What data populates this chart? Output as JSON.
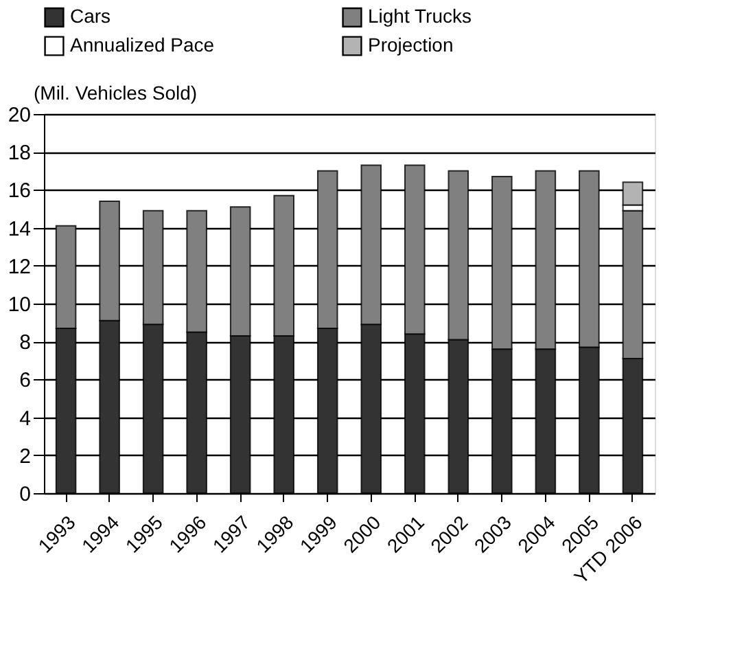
{
  "chart_data": {
    "type": "bar",
    "stacked": true,
    "ylabel": "(Mil. Vehicles Sold)",
    "categories": [
      "1993",
      "1994",
      "1995",
      "1996",
      "1997",
      "1998",
      "1999",
      "2000",
      "2001",
      "2002",
      "2003",
      "2004",
      "2005",
      "YTD 2006"
    ],
    "series": [
      {
        "name": "Cars",
        "color": "#333333",
        "values": [
          8.7,
          9.1,
          8.9,
          8.5,
          8.3,
          8.3,
          8.7,
          8.9,
          8.4,
          8.1,
          7.6,
          7.6,
          7.7,
          7.1
        ]
      },
      {
        "name": "Light Trucks",
        "color": "#808080",
        "values": [
          5.4,
          6.3,
          6.0,
          6.4,
          6.8,
          7.4,
          8.3,
          8.4,
          8.9,
          8.9,
          9.1,
          9.4,
          9.3,
          7.8
        ]
      },
      {
        "name": "Annualized Pace",
        "color": "#ffffff",
        "values": [
          null,
          null,
          null,
          null,
          null,
          null,
          null,
          null,
          null,
          null,
          null,
          null,
          null,
          0.3
        ]
      },
      {
        "name": "Projection",
        "color": "#b3b3b3",
        "values": [
          null,
          null,
          null,
          null,
          null,
          null,
          null,
          null,
          null,
          null,
          null,
          null,
          null,
          1.2
        ]
      }
    ],
    "ylim": [
      0,
      20
    ],
    "yticks": [
      0,
      2,
      4,
      6,
      8,
      10,
      12,
      14,
      16,
      18,
      20
    ],
    "grid": "y",
    "legend": "top"
  }
}
